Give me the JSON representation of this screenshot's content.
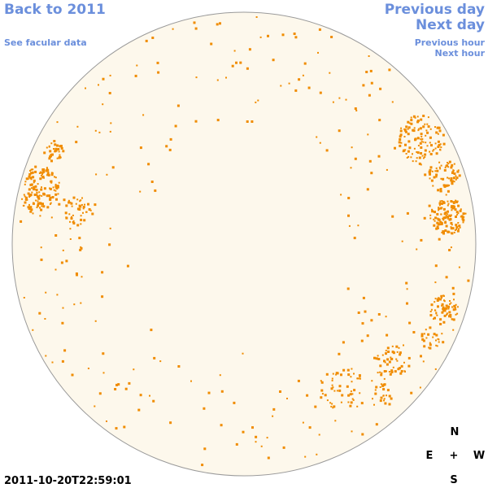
{
  "links": {
    "back": "Back to 2011",
    "previous_day": "Previous day",
    "next_day": "Next day",
    "facular": "See facular data",
    "previous_hour": "Previous hour",
    "next_hour": "Next hour"
  },
  "timestamp": "2011-10-20T22:59:01",
  "compass": {
    "north": "N",
    "east": "E",
    "center": "+",
    "west": "W",
    "south": "S"
  }
}
